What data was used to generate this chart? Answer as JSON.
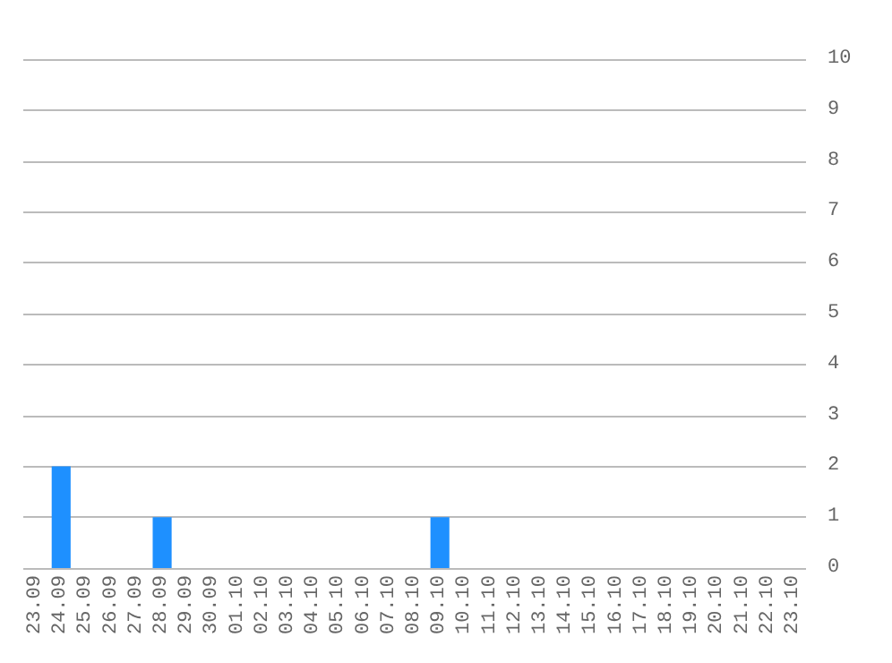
{
  "chart_data": {
    "type": "bar",
    "categories": [
      "23.09",
      "24.09",
      "25.09",
      "26.09",
      "27.09",
      "28.09",
      "29.09",
      "30.09",
      "01.10",
      "02.10",
      "03.10",
      "04.10",
      "05.10",
      "06.10",
      "07.10",
      "08.10",
      "09.10",
      "10.10",
      "11.10",
      "12.10",
      "13.10",
      "14.10",
      "15.10",
      "16.10",
      "17.10",
      "18.10",
      "19.10",
      "20.10",
      "21.10",
      "22.10",
      "23.10"
    ],
    "values": [
      0,
      2,
      0,
      0,
      0,
      1,
      0,
      0,
      0,
      0,
      0,
      0,
      0,
      0,
      0,
      0,
      1,
      0,
      0,
      0,
      0,
      0,
      0,
      0,
      0,
      0,
      0,
      0,
      0,
      0,
      0
    ],
    "color": "#1e90ff",
    "ylim": [
      0,
      10
    ],
    "yticks": [
      0,
      1,
      2,
      3,
      4,
      5,
      6,
      7,
      8,
      9,
      10
    ],
    "grid": "y"
  }
}
